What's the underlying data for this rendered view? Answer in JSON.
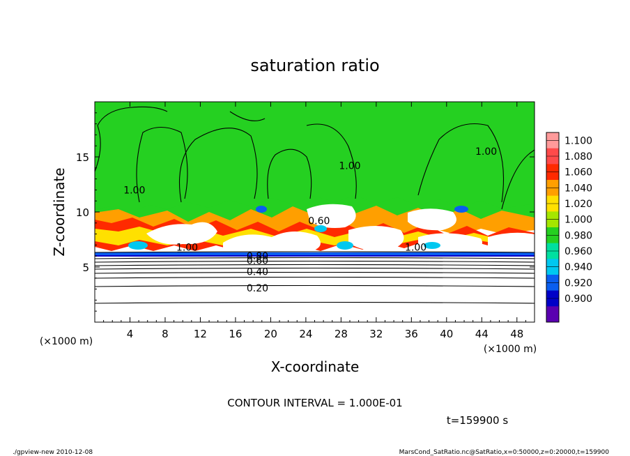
{
  "chart_data": {
    "type": "heatmap",
    "title": "saturation ratio",
    "xlabel": "X-coordinate",
    "ylabel": "Z-coordinate",
    "x_unit": "(×1000 m)",
    "y_unit": "(×1000 m)",
    "xlim": [
      0,
      50
    ],
    "ylim": [
      0,
      20
    ],
    "x_ticks": [
      4,
      8,
      12,
      16,
      20,
      24,
      28,
      32,
      36,
      40,
      44,
      48
    ],
    "y_ticks": [
      5,
      10,
      15
    ],
    "colorbar": {
      "levels": [
        "1.100",
        "1.080",
        "1.060",
        "1.040",
        "1.020",
        "1.000",
        "0.980",
        "0.960",
        "0.940",
        "0.920",
        "0.900"
      ],
      "colors": [
        "#ff9a9a",
        "#ff4a4a",
        "#ff2a00",
        "#ff9f00",
        "#ffe000",
        "#a5e600",
        "#25d021",
        "#00e0a0",
        "#00c8f0",
        "#0a5ef0",
        "#0000c8",
        "#5a00b0"
      ]
    },
    "contour_labels": [
      {
        "text": "1.00",
        "x": 4.5,
        "z": 12.0
      },
      {
        "text": "1.00",
        "x": 29.0,
        "z": 14.2
      },
      {
        "text": "1.00",
        "x": 44.5,
        "z": 15.5
      },
      {
        "text": "1.00",
        "x": 10.5,
        "z": 6.8
      },
      {
        "text": "1.00",
        "x": 36.5,
        "z": 6.8
      },
      {
        "text": "0.60",
        "x": 25.5,
        "z": 9.2
      },
      {
        "text": "0.80",
        "x": 18.5,
        "z": 6.0
      },
      {
        "text": "0.60",
        "x": 18.5,
        "z": 5.6
      },
      {
        "text": "0.40",
        "x": 18.5,
        "z": 4.6
      },
      {
        "text": "0.20",
        "x": 18.5,
        "z": 3.1
      }
    ],
    "contour_levels_lower": [
      0.2,
      0.3,
      0.4,
      0.5,
      0.6,
      0.7,
      0.8,
      0.9
    ],
    "contour_interval_text": "CONTOUR INTERVAL = 1.000E-01",
    "time_text": "t=159900 s"
  },
  "footer": {
    "left": "./gpview-new 2010-12-08",
    "right": "MarsCond_SatRatio.nc@SatRatio,x=0:50000,z=0:20000,t=159900"
  }
}
